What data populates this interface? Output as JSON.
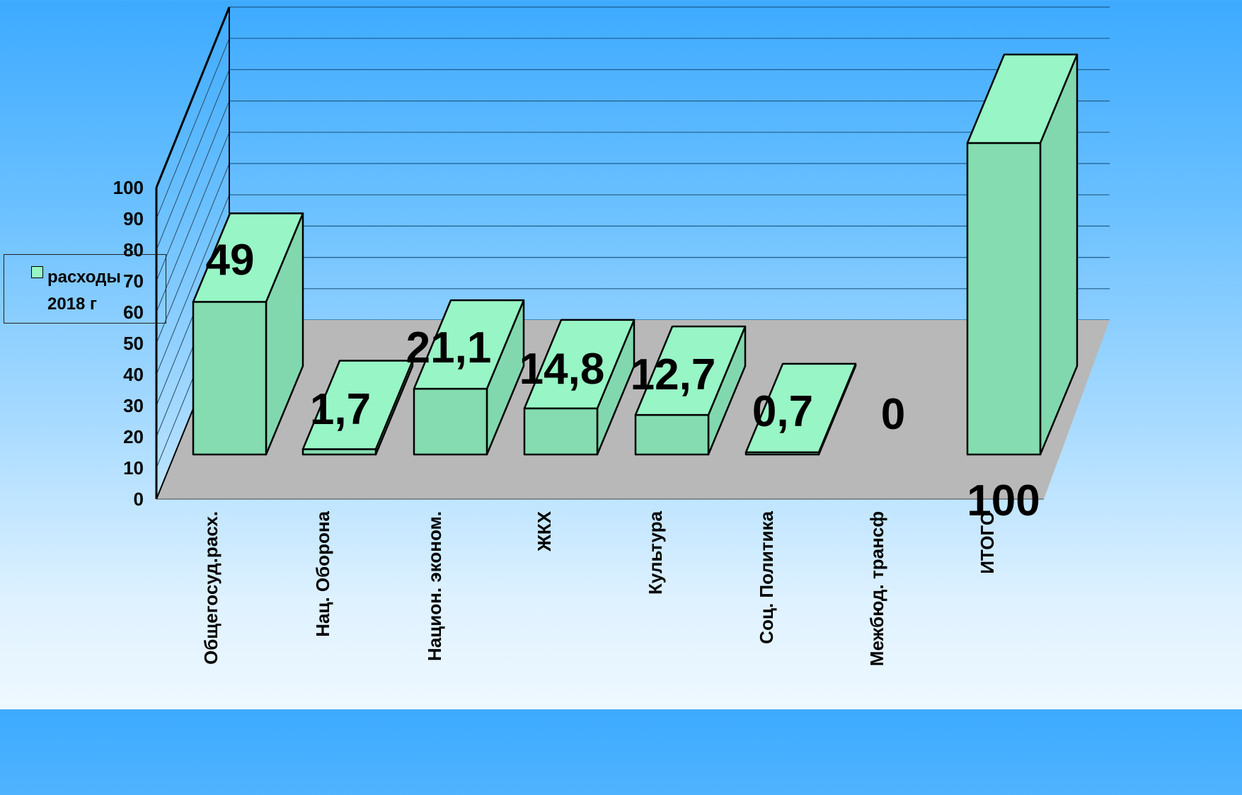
{
  "chart_data": {
    "type": "bar",
    "categories": [
      "Общегосуд.расх.",
      "Нац. Оборона",
      "Национ. эконом.",
      "ЖКХ",
      "Культура",
      "Соц. Политика",
      "Межбюд. трансф",
      "ИТОГО"
    ],
    "series": [
      {
        "name": "расходы 2018 г",
        "values": [
          49,
          1.7,
          21.1,
          14.8,
          12.7,
          0.7,
          0,
          100
        ]
      }
    ],
    "data_labels": [
      "49",
      "1,7",
      "21,1",
      "14,8",
      "12,7",
      "0,7",
      "0",
      "100"
    ],
    "ylim": [
      0,
      100
    ],
    "yticks": [
      0,
      10,
      20,
      30,
      40,
      50,
      60,
      70,
      80,
      90,
      100
    ],
    "grid": true,
    "style": "3d-column",
    "legend_position": "left",
    "colors": {
      "bar_front": "#84dcb0",
      "bar_top": "#98f5c5",
      "bar_side": "#82d8ae",
      "floor": "#b8b8b8",
      "gridline": "#1f5d8c"
    }
  },
  "legend": {
    "lines": [
      "расходы",
      "2018 г"
    ]
  }
}
